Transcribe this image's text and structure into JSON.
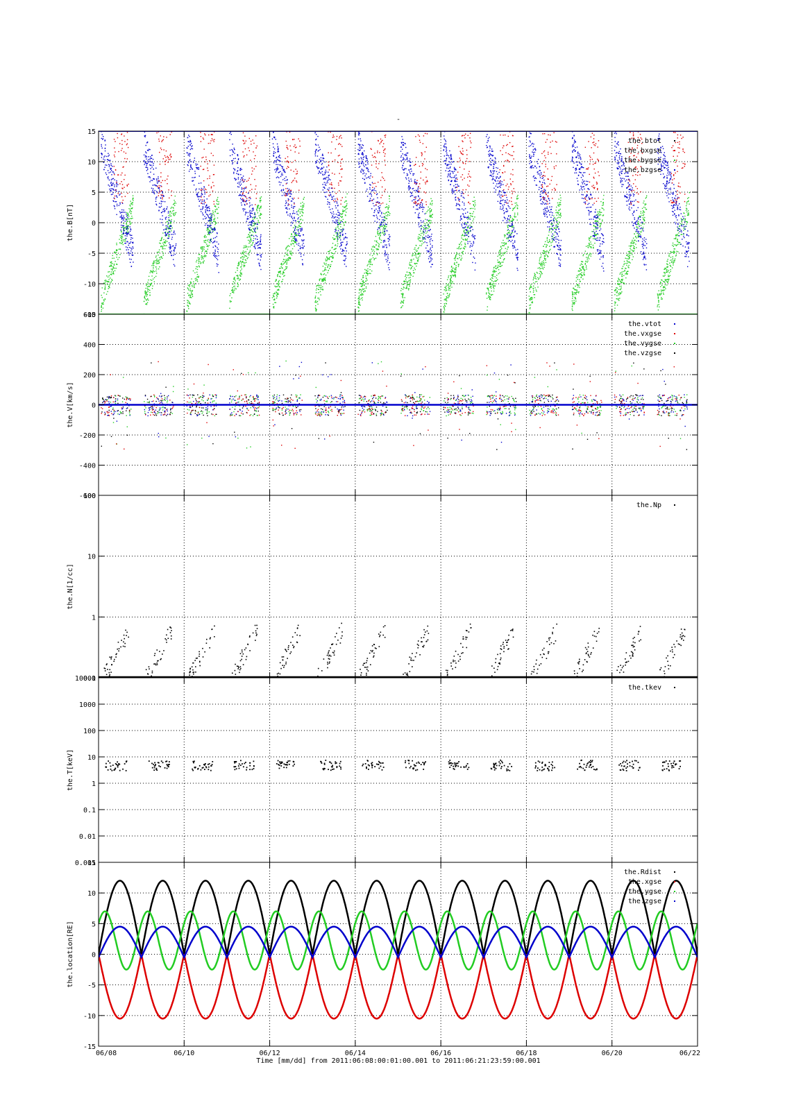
{
  "figure": {
    "title": "-",
    "xlabel": "Time [mm/dd]  from 2011:06:08:00:01:00.001  to  2011:06:21:23:59:00.001",
    "x_tick_labels": [
      "06/08",
      "06/10",
      "06/12",
      "06/14",
      "06/16",
      "06/18",
      "06/20",
      "06/22"
    ]
  },
  "colors": {
    "black": "#000000",
    "red": "#dd0000",
    "green": "#22cc22",
    "blue": "#0000cc"
  },
  "chart_data": [
    {
      "type": "scatter",
      "ylabel": "the.B[nT]",
      "ylim": [
        -15,
        15
      ],
      "yscale": "linear",
      "xlim_days": [
        0,
        14
      ],
      "y_ticks": [
        -15,
        -10,
        -5,
        0,
        5,
        10,
        15
      ],
      "y_tick_labels": [
        "-15",
        "-10",
        "-5",
        "0",
        "5",
        "10",
        "15"
      ],
      "grid": true,
      "legend": "top-right",
      "series": [
        {
          "name": "the.btot",
          "color": "black"
        },
        {
          "name": "the.bxgse",
          "color": "red"
        },
        {
          "name": "the.bygse",
          "color": "green"
        },
        {
          "name": "the.bzgse",
          "color": "blue"
        }
      ]
    },
    {
      "type": "scatter",
      "ylabel": "the.V[km/s]",
      "ylim": [
        -600,
        600
      ],
      "yscale": "linear",
      "xlim_days": [
        0,
        14
      ],
      "y_ticks": [
        -600,
        -400,
        -200,
        0,
        200,
        400,
        600
      ],
      "y_tick_labels": [
        "-600",
        "-400",
        "-200",
        "0",
        "200",
        "400",
        "600"
      ],
      "grid": true,
      "legend": "top-right",
      "series": [
        {
          "name": "the.vtot",
          "color": "blue"
        },
        {
          "name": "the.vxgse",
          "color": "red"
        },
        {
          "name": "the.vygse",
          "color": "green"
        },
        {
          "name": "the.vzgse",
          "color": "black"
        }
      ]
    },
    {
      "type": "scatter",
      "ylabel": "the.N[1/cc]",
      "ylim": [
        0.1,
        100
      ],
      "yscale": "log",
      "xlim_days": [
        0,
        14
      ],
      "y_ticks": [
        0.1,
        1,
        10,
        100
      ],
      "y_tick_labels": [
        "0.1",
        "1",
        "10",
        "100"
      ],
      "grid": true,
      "legend": "top-right",
      "series": [
        {
          "name": "the.Np",
          "color": "black"
        }
      ]
    },
    {
      "type": "scatter",
      "ylabel": "the.T[keV]",
      "ylim": [
        0.001,
        10000
      ],
      "yscale": "log",
      "xlim_days": [
        0,
        14
      ],
      "y_ticks": [
        0.001,
        0.01,
        0.1,
        1,
        10,
        100,
        1000,
        10000
      ],
      "y_tick_labels": [
        "0.001",
        "0.01",
        "0.1",
        "1",
        "10",
        "100",
        "1000",
        "10000"
      ],
      "grid": true,
      "legend": "top-right",
      "series": [
        {
          "name": "the.tkev",
          "color": "black"
        }
      ]
    },
    {
      "type": "line",
      "ylabel": "the.location[RE]",
      "ylim": [
        -15,
        15
      ],
      "yscale": "linear",
      "xlim_days": [
        0,
        14
      ],
      "y_ticks": [
        -15,
        -10,
        -5,
        0,
        5,
        10,
        15
      ],
      "y_tick_labels": [
        "-15",
        "-10",
        "-5",
        "0",
        "5",
        "10",
        "15"
      ],
      "grid": true,
      "legend": "top-right",
      "orbit_period_days": 1.0,
      "series": [
        {
          "name": "the.Rdist",
          "color": "black",
          "min": 0,
          "max": 12
        },
        {
          "name": "the.xgse",
          "color": "red",
          "min": -10.5,
          "max": 0
        },
        {
          "name": "the.ygse",
          "color": "green",
          "min": -2.5,
          "max": 7
        },
        {
          "name": "the.zgse",
          "color": "blue",
          "min": -0.5,
          "max": 4.5
        }
      ]
    }
  ]
}
